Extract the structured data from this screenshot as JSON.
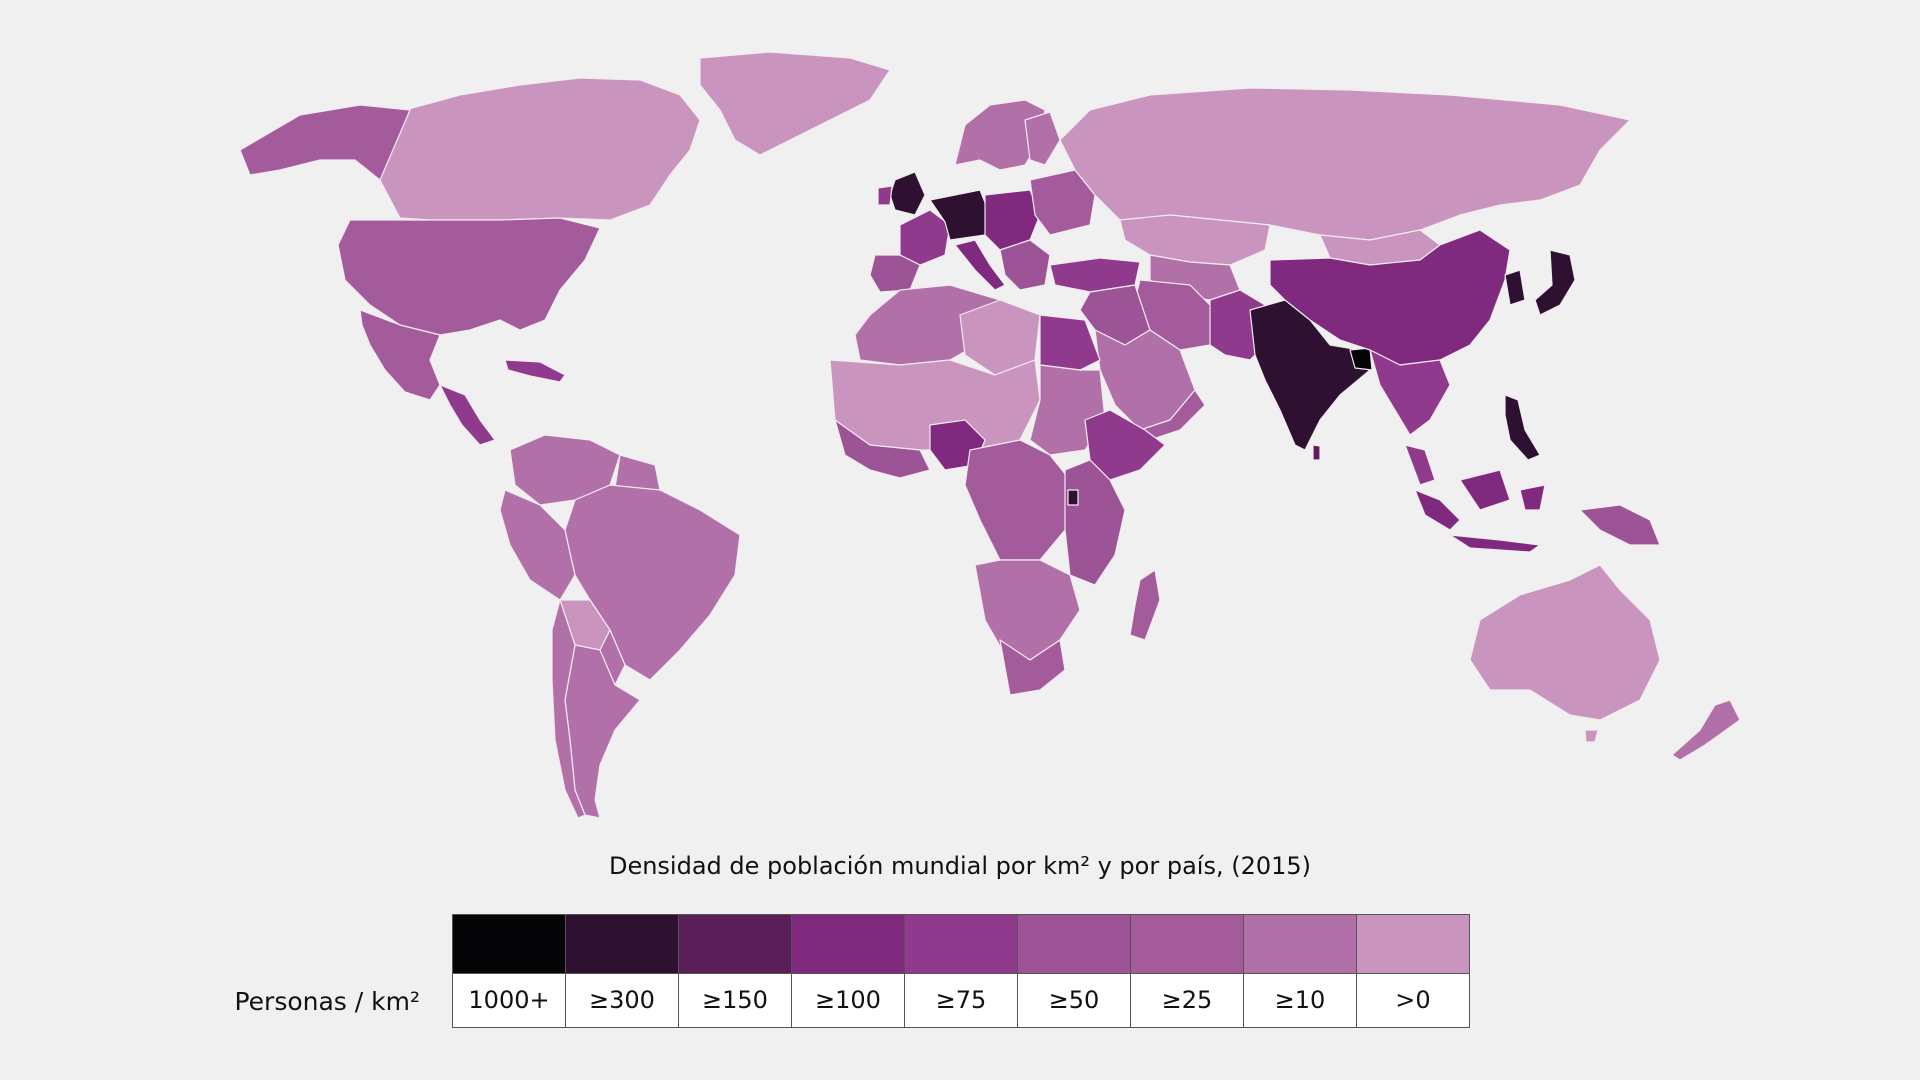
{
  "title": "Densidad de población mundial por km² y por país, (2015)",
  "legend": {
    "label": "Personas / km²",
    "classes": [
      {
        "label": "1000+",
        "color": "#050407"
      },
      {
        "label": "≥300",
        "color": "#2e1030"
      },
      {
        "label": "≥150",
        "color": "#5a1e59"
      },
      {
        "label": "≥100",
        "color": "#7f2a7e"
      },
      {
        "label": "≥75",
        "color": "#8f3a8d"
      },
      {
        "label": "≥50",
        "color": "#9d5497"
      },
      {
        "label": "≥25",
        "color": "#a45b9b"
      },
      {
        "label": "≥10",
        "color": "#b270a9"
      },
      {
        "label": ">0",
        "color": "#c994bd"
      }
    ]
  }
}
